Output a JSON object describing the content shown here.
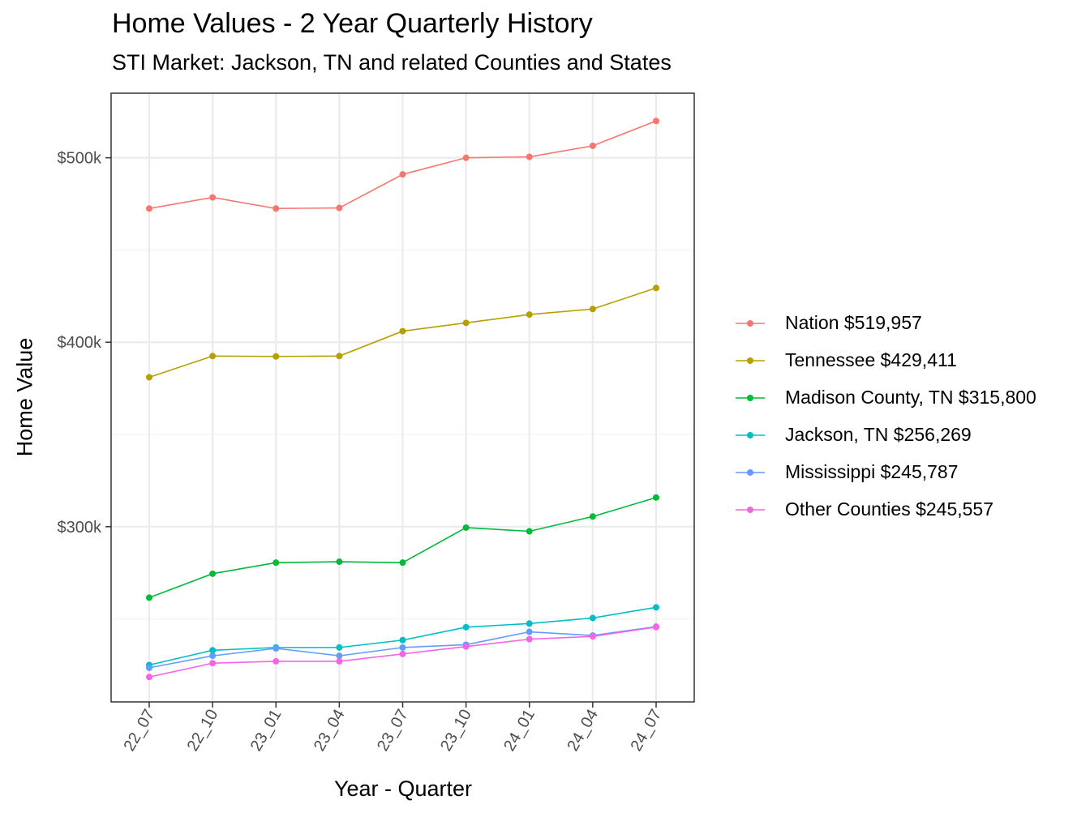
{
  "colors": {
    "nation": "#F8766D",
    "tennessee": "#B79F00",
    "madison": "#00BA38",
    "jackson": "#00BFC4",
    "mississippi": "#619CFF",
    "other": "#F564E3"
  },
  "chart_data": {
    "type": "line",
    "title": "Home Values - 2 Year Quarterly History",
    "subtitle": "STI Market: Jackson, TN and related Counties and States",
    "xlabel": "Year - Quarter",
    "ylabel": "Home Value",
    "categories": [
      "22_07",
      "22_10",
      "23_01",
      "23_04",
      "23_07",
      "23_10",
      "24_01",
      "24_04",
      "24_07"
    ],
    "yticks": [
      {
        "value": 300000,
        "label": "$300k"
      },
      {
        "value": 400000,
        "label": "$400k"
      },
      {
        "value": 500000,
        "label": "$500k"
      }
    ],
    "ylim": [
      205000,
      535000
    ],
    "grid": true,
    "legend_position": "right",
    "series": [
      {
        "name": "Nation $519,957",
        "color": "#F8766D",
        "values": [
          472500,
          478500,
          472500,
          472800,
          491000,
          500000,
          500500,
          506500,
          519957
        ]
      },
      {
        "name": "Tennessee $429,411",
        "color": "#B79F00",
        "values": [
          381000,
          392500,
          392300,
          392500,
          406000,
          410500,
          415000,
          418000,
          429411
        ]
      },
      {
        "name": "Madison County, TN $315,800",
        "color": "#00BA38",
        "values": [
          261500,
          274500,
          280500,
          281000,
          280500,
          299500,
          297500,
          305500,
          315800
        ]
      },
      {
        "name": "Jackson, TN $256,269",
        "color": "#00BFC4",
        "values": [
          225000,
          233000,
          234500,
          234500,
          238500,
          245500,
          247500,
          250500,
          256269
        ]
      },
      {
        "name": "Mississippi $245,787",
        "color": "#619CFF",
        "values": [
          223500,
          230000,
          234000,
          230000,
          234500,
          236000,
          243000,
          241000,
          245787
        ]
      },
      {
        "name": "Other Counties $245,557",
        "color": "#F564E3",
        "values": [
          218500,
          226000,
          227000,
          227000,
          231000,
          235000,
          239000,
          240500,
          245557
        ]
      }
    ]
  }
}
